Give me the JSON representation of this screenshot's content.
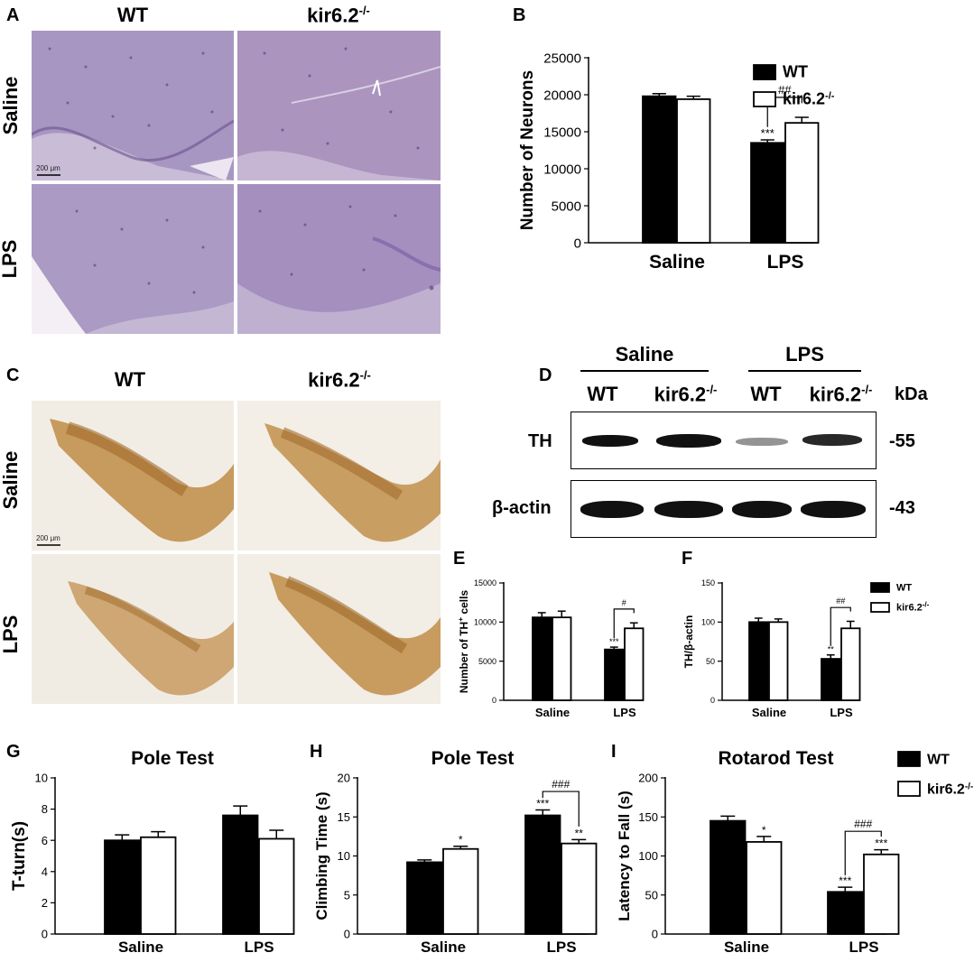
{
  "panels": {
    "A": "A",
    "B": "B",
    "C": "C",
    "D": "D",
    "E": "E",
    "F": "F",
    "G": "G",
    "H": "H",
    "I": "I"
  },
  "histology": {
    "col_wt": "WT",
    "col_ko": "kir6.2",
    "ko_sup": "-/-",
    "row_saline": "Saline",
    "row_lps": "LPS",
    "scalebar": "200 μm",
    "nissl_color": "#9b86b4",
    "th_color": "#b07a3c"
  },
  "blot": {
    "group_saline": "Saline",
    "group_lps": "LPS",
    "lanes": [
      "WT",
      "kir6.2",
      "WT",
      "kir6.2"
    ],
    "ko_sup": "-/-",
    "kda": "kDa",
    "rows": [
      {
        "label": "TH",
        "mw": "-55",
        "intensity": [
          1.0,
          1.0,
          0.45,
          0.9
        ]
      },
      {
        "label": "β-actin",
        "mw": "-43",
        "intensity": [
          1.0,
          1.0,
          1.0,
          1.0
        ]
      }
    ]
  },
  "legend": {
    "wt": "WT",
    "ko": "kir6.2",
    "ko_sup": "-/-"
  },
  "chart_data": [
    {
      "id": "B",
      "type": "bar",
      "title": "",
      "categories": [
        "Saline",
        "LPS"
      ],
      "ylabel": "Number of Neurons",
      "ylim": [
        0,
        25000
      ],
      "yticks": [
        0,
        5000,
        10000,
        15000,
        20000,
        25000
      ],
      "series": [
        {
          "name": "WT",
          "values": [
            19800,
            13500
          ],
          "errors": [
            350,
            400
          ],
          "sig": [
            "",
            "***"
          ]
        },
        {
          "name": "kir6.2-/-",
          "values": [
            19400,
            16200
          ],
          "errors": [
            400,
            750
          ],
          "sig": [
            "",
            ""
          ]
        }
      ],
      "brackets": [
        {
          "category": 1,
          "label": "##"
        }
      ],
      "legend": "top-right"
    },
    {
      "id": "E",
      "type": "bar",
      "title": "",
      "categories": [
        "Saline",
        "LPS"
      ],
      "ylabel": "Number of TH",
      "ylabel_sup": "+",
      "ylabel_tail": " cells",
      "ylim": [
        0,
        15000
      ],
      "yticks": [
        0,
        5000,
        10000,
        15000
      ],
      "series": [
        {
          "name": "WT",
          "values": [
            10600,
            6500
          ],
          "errors": [
            600,
            300
          ],
          "sig": [
            "",
            "***"
          ]
        },
        {
          "name": "kir6.2-/-",
          "values": [
            10600,
            9200
          ],
          "errors": [
            800,
            700
          ],
          "sig": [
            "",
            ""
          ]
        }
      ],
      "brackets": [
        {
          "category": 1,
          "label": "#"
        }
      ]
    },
    {
      "id": "F",
      "type": "bar",
      "title": "",
      "categories": [
        "Saline",
        "LPS"
      ],
      "ylabel": "TH/β-actin",
      "ylim": [
        0,
        150
      ],
      "yticks": [
        0,
        50,
        100,
        150
      ],
      "series": [
        {
          "name": "WT",
          "values": [
            100,
            53
          ],
          "errors": [
            5,
            5
          ],
          "sig": [
            "",
            "**"
          ]
        },
        {
          "name": "kir6.2-/-",
          "values": [
            100,
            92
          ],
          "errors": [
            4,
            9
          ],
          "sig": [
            "",
            ""
          ]
        }
      ],
      "brackets": [
        {
          "category": 1,
          "label": "##"
        }
      ],
      "legend": "top-right"
    },
    {
      "id": "G",
      "type": "bar",
      "title": "Pole Test",
      "categories": [
        "Saline",
        "LPS"
      ],
      "ylabel": "T-turn(s)",
      "ylim": [
        0,
        10
      ],
      "yticks": [
        0,
        2,
        4,
        6,
        8,
        10
      ],
      "series": [
        {
          "name": "WT",
          "values": [
            6.0,
            7.6
          ],
          "errors": [
            0.35,
            0.6
          ],
          "sig": [
            "",
            ""
          ]
        },
        {
          "name": "kir6.2-/-",
          "values": [
            6.2,
            6.1
          ],
          "errors": [
            0.35,
            0.55
          ],
          "sig": [
            "",
            ""
          ]
        }
      ],
      "brackets": []
    },
    {
      "id": "H",
      "type": "bar",
      "title": "Pole Test",
      "categories": [
        "Saline",
        "LPS"
      ],
      "ylabel": "Climbing Time (s)",
      "ylim": [
        0,
        20
      ],
      "yticks": [
        0,
        5,
        10,
        15,
        20
      ],
      "series": [
        {
          "name": "WT",
          "values": [
            9.2,
            15.2
          ],
          "errors": [
            0.3,
            0.7
          ],
          "sig": [
            "",
            "***"
          ]
        },
        {
          "name": "kir6.2-/-",
          "values": [
            10.9,
            11.6
          ],
          "errors": [
            0.35,
            0.5
          ],
          "sig": [
            "*",
            "**"
          ]
        }
      ],
      "brackets": [
        {
          "category": 1,
          "label": "###"
        }
      ]
    },
    {
      "id": "I",
      "type": "bar",
      "title": "Rotarod Test",
      "categories": [
        "Saline",
        "LPS"
      ],
      "ylabel": "Latency to Fall (s)",
      "ylim": [
        0,
        200
      ],
      "yticks": [
        0,
        50,
        100,
        150,
        200
      ],
      "series": [
        {
          "name": "WT",
          "values": [
            145,
            54
          ],
          "errors": [
            6,
            6
          ],
          "sig": [
            "",
            "***"
          ]
        },
        {
          "name": "kir6.2-/-",
          "values": [
            118,
            102
          ],
          "errors": [
            7,
            6
          ],
          "sig": [
            "*",
            "***"
          ]
        }
      ],
      "brackets": [
        {
          "category": 1,
          "label": "###"
        }
      ],
      "legend": "top-right"
    }
  ]
}
